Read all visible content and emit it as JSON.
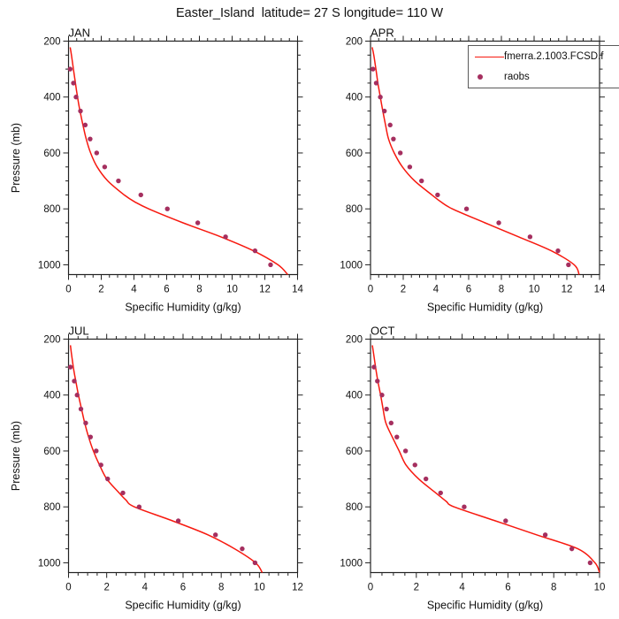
{
  "title": "Easter_Island  latitude= 27 S longitude= 110 W",
  "colors": {
    "line": "#f7190f",
    "raobs": "#a52f5f",
    "axis": "#222222",
    "text": "#111111"
  },
  "legend": {
    "line_label": "fmerra.2.1003.FCSD.f",
    "dot_label": "raobs"
  },
  "axes": {
    "x_title": "Specific Humidity (g/kg)",
    "y_title": "Pressure (mb)"
  },
  "chart_data": [
    {
      "type": "line",
      "panel": "JAN",
      "xlim": [
        0,
        14
      ],
      "xticks": [
        0,
        2,
        4,
        6,
        8,
        10,
        12,
        14
      ],
      "x_minor_step": 0.5,
      "ylim": [
        200,
        1035
      ],
      "yticks": [
        200,
        400,
        600,
        800,
        1000
      ],
      "y_minor_step": 50,
      "y_axis_reversed": true,
      "show_y_axis_title": true,
      "series": [
        {
          "name": "fmerra.2.1003.FCSD.f",
          "style": "line",
          "pressure": [
            222,
            250,
            300,
            350,
            400,
            450,
            500,
            550,
            600,
            650,
            700,
            750,
            775,
            800,
            850,
            900,
            950,
            1000,
            1035
          ],
          "q": [
            0.1,
            0.18,
            0.3,
            0.42,
            0.55,
            0.7,
            0.88,
            1.08,
            1.35,
            1.75,
            2.4,
            3.4,
            4.05,
            4.9,
            7.0,
            9.3,
            11.3,
            12.8,
            13.4
          ]
        },
        {
          "name": "raobs",
          "style": "markers",
          "pressure": [
            300,
            350,
            400,
            450,
            500,
            550,
            600,
            650,
            700,
            750,
            800,
            850,
            900,
            950,
            1000
          ],
          "q": [
            0.1,
            0.3,
            0.46,
            0.73,
            1.02,
            1.32,
            1.72,
            2.21,
            3.05,
            4.42,
            6.04,
            7.9,
            9.6,
            11.4,
            12.35
          ]
        }
      ]
    },
    {
      "type": "line",
      "panel": "APR",
      "xlim": [
        0,
        14
      ],
      "xticks": [
        0,
        2,
        4,
        6,
        8,
        10,
        12,
        14
      ],
      "x_minor_step": 0.5,
      "ylim": [
        200,
        1035
      ],
      "yticks": [
        200,
        400,
        600,
        800,
        1000
      ],
      "y_minor_step": 50,
      "y_axis_reversed": true,
      "show_y_axis_title": false,
      "series": [
        {
          "name": "fmerra.2.1003.FCSD.f",
          "style": "line",
          "pressure": [
            222,
            250,
            300,
            350,
            400,
            450,
            500,
            550,
            600,
            650,
            700,
            750,
            775,
            800,
            850,
            900,
            950,
            1000,
            1035
          ],
          "q": [
            0.1,
            0.2,
            0.33,
            0.45,
            0.6,
            0.75,
            0.92,
            1.1,
            1.45,
            1.95,
            2.7,
            3.75,
            4.3,
            5.0,
            7.0,
            9.05,
            11.05,
            12.45,
            12.75
          ]
        },
        {
          "name": "raobs",
          "style": "markers",
          "pressure": [
            300,
            350,
            400,
            450,
            500,
            550,
            600,
            650,
            700,
            750,
            800,
            850,
            900,
            950,
            1000
          ],
          "q": [
            0.15,
            0.35,
            0.6,
            0.85,
            1.2,
            1.4,
            1.82,
            2.4,
            3.12,
            4.1,
            5.87,
            7.84,
            9.75,
            11.46,
            12.1
          ]
        }
      ]
    },
    {
      "type": "line",
      "panel": "JUL",
      "xlim": [
        0,
        12
      ],
      "xticks": [
        0,
        2,
        4,
        6,
        8,
        10,
        12
      ],
      "x_minor_step": 0.5,
      "ylim": [
        200,
        1035
      ],
      "yticks": [
        200,
        400,
        600,
        800,
        1000
      ],
      "y_minor_step": 50,
      "y_axis_reversed": true,
      "show_y_axis_title": true,
      "series": [
        {
          "name": "fmerra.2.1003.FCSD.f",
          "style": "line",
          "pressure": [
            222,
            250,
            300,
            350,
            400,
            450,
            500,
            550,
            600,
            650,
            700,
            750,
            775,
            800,
            850,
            900,
            950,
            1000,
            1035
          ],
          "q": [
            0.1,
            0.15,
            0.25,
            0.38,
            0.52,
            0.68,
            0.85,
            1.05,
            1.3,
            1.62,
            2.0,
            2.65,
            3.0,
            3.45,
            5.45,
            7.3,
            8.7,
            9.8,
            10.15
          ]
        },
        {
          "name": "raobs",
          "style": "markers",
          "pressure": [
            300,
            350,
            400,
            450,
            500,
            550,
            600,
            650,
            700,
            750,
            800,
            850,
            900,
            950,
            1000
          ],
          "q": [
            0.1,
            0.3,
            0.45,
            0.65,
            0.9,
            1.15,
            1.45,
            1.7,
            2.05,
            2.85,
            3.7,
            5.75,
            7.7,
            9.1,
            9.77
          ]
        }
      ]
    },
    {
      "type": "line",
      "panel": "OCT",
      "xlim": [
        0,
        10
      ],
      "xticks": [
        0,
        2,
        4,
        6,
        8,
        10
      ],
      "x_minor_step": 0.5,
      "ylim": [
        200,
        1035
      ],
      "yticks": [
        200,
        400,
        600,
        800,
        1000
      ],
      "y_minor_step": 50,
      "y_axis_reversed": true,
      "show_y_axis_title": false,
      "series": [
        {
          "name": "fmerra.2.1003.FCSD.f",
          "style": "line",
          "pressure": [
            222,
            250,
            300,
            350,
            400,
            450,
            500,
            550,
            600,
            650,
            700,
            750,
            780,
            800,
            850,
            900,
            950,
            1000,
            1035
          ],
          "q": [
            0.08,
            0.13,
            0.22,
            0.32,
            0.44,
            0.55,
            0.67,
            0.95,
            1.25,
            1.55,
            2.1,
            2.85,
            3.3,
            3.65,
            5.45,
            7.25,
            9.05,
            9.8,
            10.0
          ]
        },
        {
          "name": "raobs",
          "style": "markers",
          "pressure": [
            300,
            350,
            400,
            450,
            500,
            550,
            600,
            650,
            700,
            750,
            800,
            850,
            900,
            950,
            1000
          ],
          "q": [
            0.15,
            0.3,
            0.5,
            0.7,
            0.9,
            1.15,
            1.53,
            1.94,
            2.42,
            3.06,
            4.09,
            5.9,
            7.63,
            8.79,
            9.59
          ]
        }
      ]
    }
  ]
}
